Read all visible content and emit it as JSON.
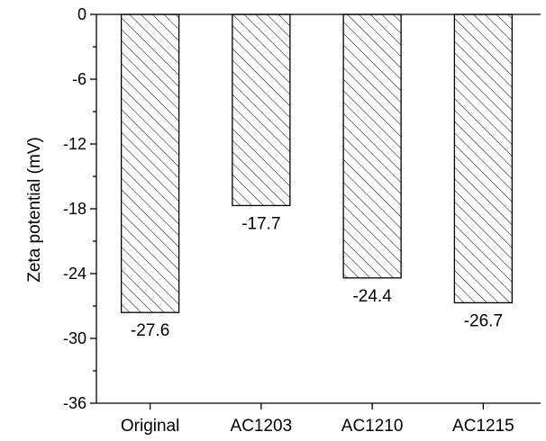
{
  "chart_data": {
    "type": "bar",
    "categories": [
      "Original",
      "AC1203",
      "AC1210",
      "AC1215"
    ],
    "values": [
      -27.6,
      -17.7,
      -24.4,
      -26.7
    ],
    "data_labels": [
      "-27.6",
      "-17.7",
      "-24.4",
      "-26.7"
    ],
    "title": "",
    "xlabel": "",
    "ylabel": "Zeta potential (mV)",
    "ylim": [
      -36,
      0
    ],
    "yticks": [
      0,
      -6,
      -12,
      -18,
      -24,
      -30,
      -36
    ],
    "ytick_labels": [
      "0",
      "-6",
      "-12",
      "-18",
      "-24",
      "-30",
      "-36"
    ],
    "minor_ytick_step": 3,
    "grid": false,
    "legend": "none",
    "bar_fill": "diagonal-hatch",
    "colors": {
      "bar_stroke": "#000000",
      "bar_fill": "#ffffff"
    }
  }
}
